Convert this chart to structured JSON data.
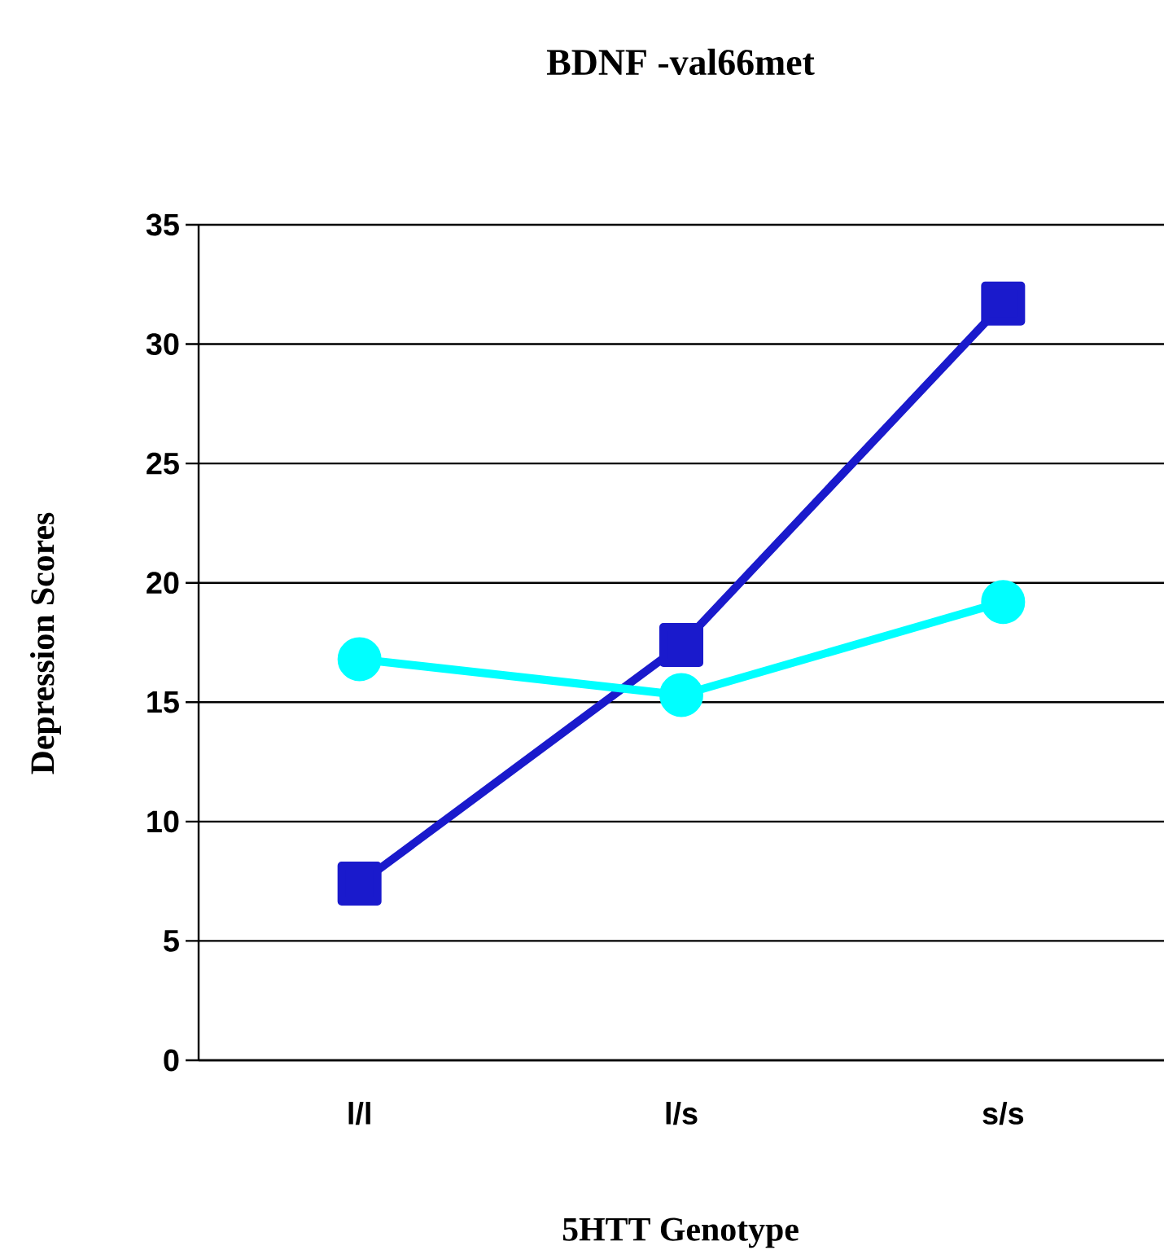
{
  "chart_data": {
    "type": "line",
    "title": "BDNF -val66met",
    "xlabel": "5HTT Genotype",
    "ylabel": "Depression Scores",
    "categories": [
      "l/l",
      "l/s",
      "s/s"
    ],
    "series": [
      {
        "color": "#1a1acc",
        "marker": "square",
        "values": [
          7.4,
          17.4,
          31.7
        ]
      },
      {
        "color": "#00ffff",
        "marker": "circle",
        "values": [
          16.8,
          15.3,
          19.2
        ]
      }
    ],
    "ylim": [
      0,
      35
    ],
    "yticks": [
      0,
      5,
      10,
      15,
      20,
      25,
      30,
      35
    ],
    "grid": "y",
    "line_style": "solid"
  }
}
